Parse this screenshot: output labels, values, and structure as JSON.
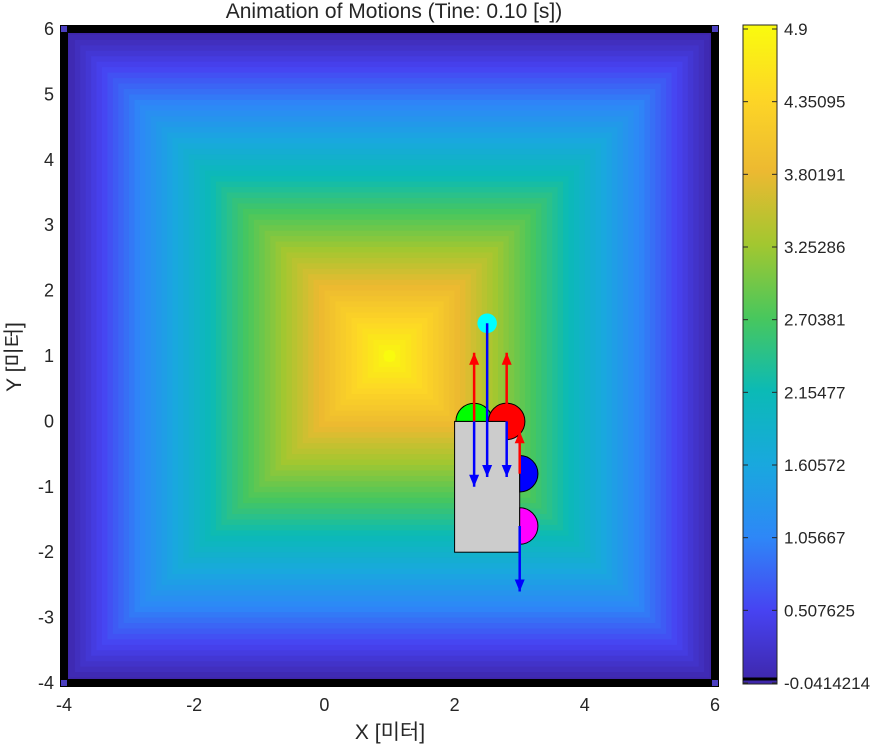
{
  "chart_data": {
    "type": "heatmap",
    "title": "Animation of Motions (Tine: 0.10 [s])",
    "xlabel": "X [미터]",
    "ylabel": "Y [미터]",
    "xlim": [
      -4,
      6
    ],
    "ylim": [
      -4,
      6
    ],
    "xticks": [
      "-4",
      "-2",
      "0",
      "2",
      "4",
      "6"
    ],
    "yticks": [
      "6",
      "5",
      "4",
      "3",
      "2",
      "1",
      "0",
      "-1",
      "-2",
      "-3",
      "-4"
    ],
    "field": {
      "shape": "pyramid",
      "peak": [
        1,
        1
      ],
      "peak_value": 4.9,
      "min_value": -0.0414214
    },
    "colormap": [
      "#3e26a8",
      "#4743f2",
      "#2e87f7",
      "#19a8de",
      "#0bbab6",
      "#48c75d",
      "#a2c730",
      "#ecb931",
      "#fdd626",
      "#f9fb0e"
    ],
    "colorbar": {
      "min": -0.0414214,
      "max": 4.9,
      "tick_values": [
        4.9,
        4.35095,
        3.80191,
        3.25286,
        2.70381,
        2.15477,
        1.60572,
        1.05667,
        0.507625,
        -0.0414214
      ],
      "tick_labels": [
        "4.9",
        "4.35095",
        "3.80191",
        "3.25286",
        "2.70381",
        "2.15477",
        "1.60572",
        "1.05667",
        "0.507625",
        "-0.0414214"
      ]
    },
    "body": {
      "x": [
        2,
        3
      ],
      "y": [
        -2,
        0
      ],
      "color": "#cccccc"
    },
    "markers": [
      {
        "name": "green-half",
        "cx": 2.3,
        "cy": 0,
        "r": 0.28,
        "color": "#00ff00",
        "half": "top"
      },
      {
        "name": "red-half",
        "cx": 2.8,
        "cy": 0,
        "r": 0.28,
        "color": "#ff0000",
        "half": "top-right"
      },
      {
        "name": "blue-half",
        "cx": 3,
        "cy": -0.8,
        "r": 0.28,
        "color": "#0000ff",
        "half": "right"
      },
      {
        "name": "magenta-half",
        "cx": 3,
        "cy": -1.6,
        "r": 0.28,
        "color": "#ff00ff",
        "half": "right"
      },
      {
        "name": "cyan-dot",
        "cx": 2.5,
        "cy": 1.5,
        "r": 0.15,
        "color": "#00ffff",
        "half": "full"
      }
    ],
    "arrows": [
      {
        "name": "green-up",
        "x0": 2.3,
        "y0": 0,
        "x1": 2.3,
        "y1": 1.05,
        "color": "#ff0000"
      },
      {
        "name": "green-down",
        "x0": 2.3,
        "y0": 0,
        "x1": 2.3,
        "y1": -1.0,
        "color": "#0000ff"
      },
      {
        "name": "red-up",
        "x0": 2.8,
        "y0": 0,
        "x1": 2.8,
        "y1": 1.05,
        "color": "#ff0000"
      },
      {
        "name": "red-down",
        "x0": 2.8,
        "y0": 0,
        "x1": 2.8,
        "y1": -0.85,
        "color": "#0000ff"
      },
      {
        "name": "blue-up",
        "x0": 3,
        "y0": -0.8,
        "x1": 3,
        "y1": -0.15,
        "color": "#ff0000"
      },
      {
        "name": "magenta-down",
        "x0": 3,
        "y0": -1.6,
        "x1": 3,
        "y1": -2.6,
        "color": "#0000ff"
      },
      {
        "name": "cyan-down",
        "x0": 2.5,
        "y0": 1.5,
        "x1": 2.5,
        "y1": -0.85,
        "color": "#0000ff"
      }
    ],
    "boundary_color": "#000000",
    "grid": false
  }
}
